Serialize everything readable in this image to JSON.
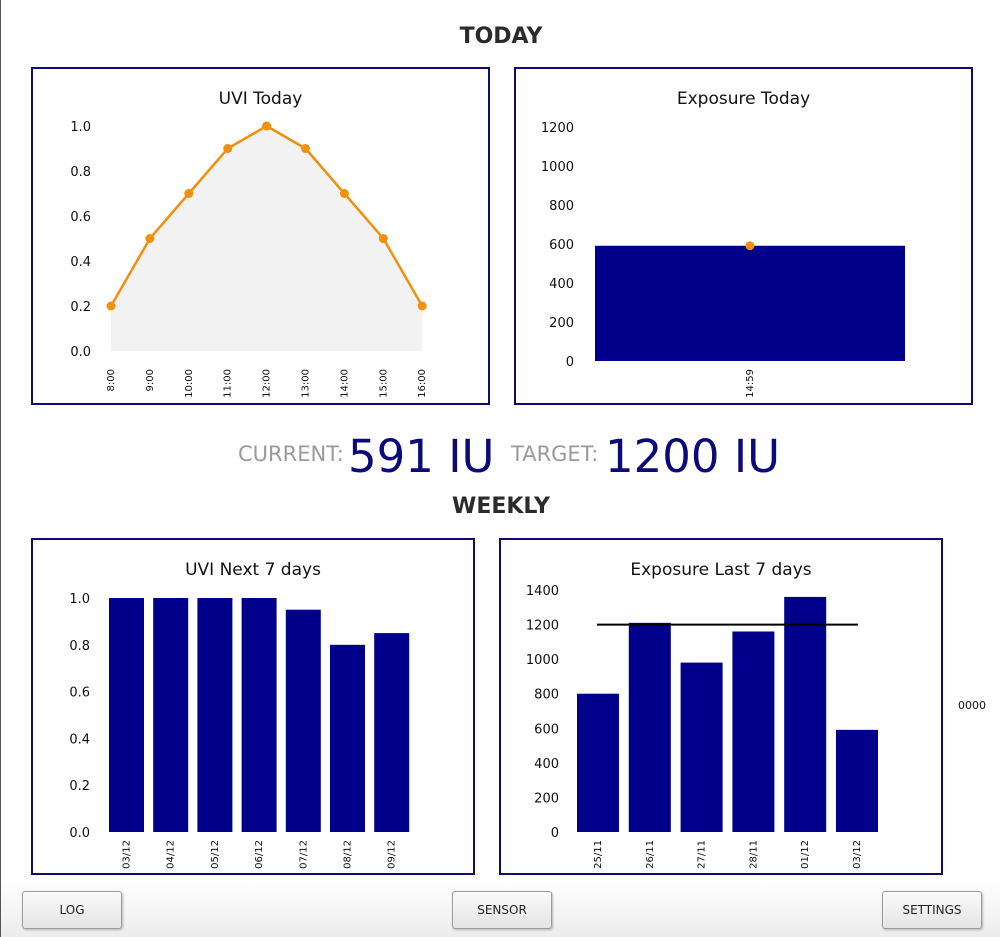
{
  "sections": {
    "today": "TODAY",
    "weekly": "WEEKLY"
  },
  "stats": {
    "current_label": "CURRENT:",
    "current_value": "591 IU",
    "target_label": "TARGET:",
    "target_value": "1200 IU"
  },
  "side_readout": "0000",
  "buttons": {
    "log": "LOG",
    "sensor": "SENSOR",
    "settings": "SETTINGS"
  },
  "colors": {
    "bar": "#00008b",
    "line": "#f0900c",
    "frame": "#0d0d6e",
    "area": "#f2f2f2"
  },
  "chart_data": [
    {
      "id": "uvi_today",
      "type": "area",
      "title": "UVI Today",
      "x": [
        "8:00",
        "9:00",
        "10:00",
        "11:00",
        "12:00",
        "13:00",
        "14:00",
        "15:00",
        "16:00"
      ],
      "values": [
        0.2,
        0.5,
        0.7,
        0.9,
        1.0,
        0.9,
        0.7,
        0.5,
        0.2
      ],
      "yticks": [
        "0.0",
        "0.2",
        "0.4",
        "0.6",
        "0.8",
        "1.0"
      ],
      "ylim": [
        0,
        1.0
      ],
      "grid": false
    },
    {
      "id": "exposure_today",
      "type": "bar",
      "title": "Exposure Today",
      "categories": [
        "14:59"
      ],
      "values": [
        591
      ],
      "marker_value": 591,
      "yticks": [
        "0",
        "200",
        "400",
        "600",
        "800",
        "1000",
        "1200"
      ],
      "ylim": [
        0,
        1200
      ],
      "grid": false
    },
    {
      "id": "uvi_next_7",
      "type": "bar",
      "title": "UVI Next 7 days",
      "categories": [
        "03/12",
        "04/12",
        "05/12",
        "06/12",
        "07/12",
        "08/12",
        "09/12"
      ],
      "values": [
        1.0,
        1.0,
        1.0,
        1.0,
        0.95,
        0.8,
        0.85
      ],
      "yticks": [
        "0.0",
        "0.2",
        "0.4",
        "0.6",
        "0.8",
        "1.0"
      ],
      "ylim": [
        0,
        1.0
      ],
      "grid": false
    },
    {
      "id": "exposure_last_7",
      "type": "bar",
      "title": "Exposure Last 7 days",
      "categories": [
        "25/11",
        "26/11",
        "27/11",
        "28/11",
        "01/12",
        "03/12"
      ],
      "values": [
        800,
        1210,
        980,
        1160,
        1360,
        591
      ],
      "target_line": 1200,
      "yticks": [
        "0",
        "200",
        "400",
        "600",
        "800",
        "1000",
        "1200",
        "1400"
      ],
      "ylim": [
        0,
        1400
      ],
      "grid": false
    }
  ]
}
